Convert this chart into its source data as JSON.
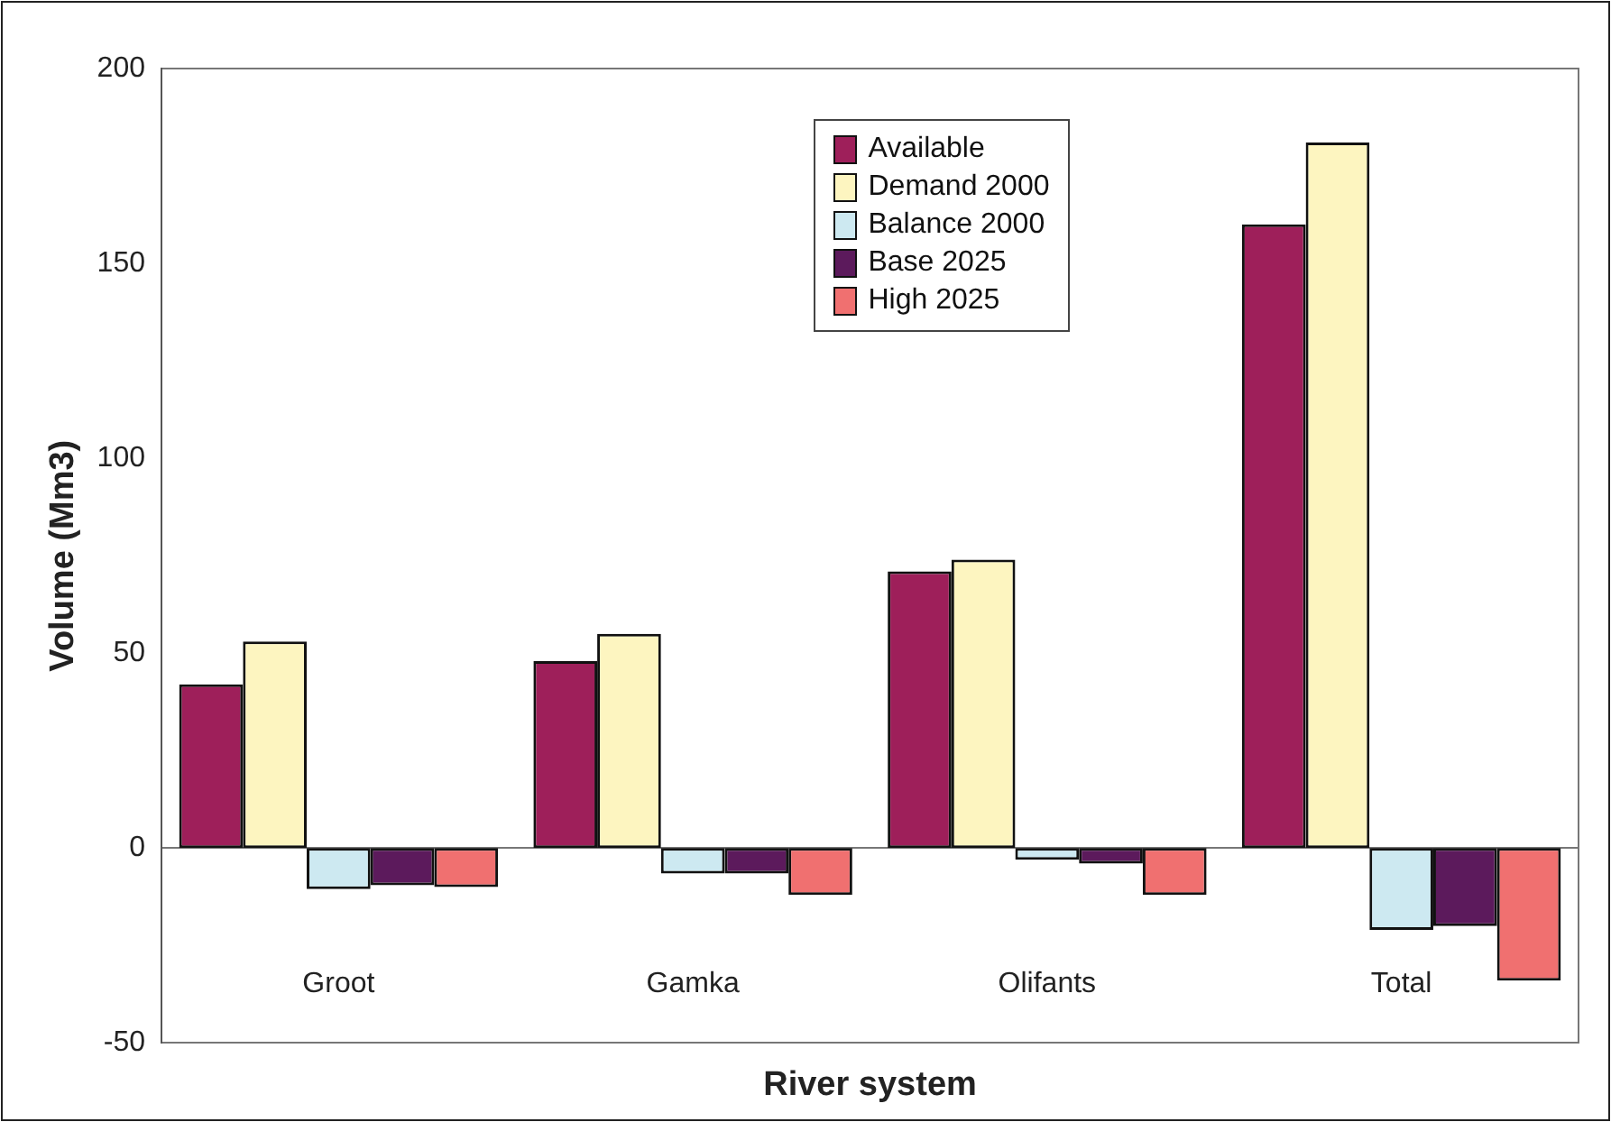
{
  "chart_data": {
    "type": "bar",
    "xlabel": "River system",
    "ylabel": "Volume (Mm3)",
    "categories": [
      "Groot",
      "Gamka",
      "Olifants",
      "Total"
    ],
    "series": [
      {
        "name": "Available",
        "color": "#9e1f5a",
        "values": [
          42,
          48,
          71,
          160
        ]
      },
      {
        "name": "Demand 2000",
        "color": "#fdf5c0",
        "values": [
          53,
          55,
          74,
          181
        ]
      },
      {
        "name": "Balance 2000",
        "color": "#cde9f1",
        "values": [
          -10.5,
          -6.5,
          -3,
          -21
        ]
      },
      {
        "name": "Base 2025",
        "color": "#5c1a5c",
        "values": [
          -9.5,
          -6.5,
          -4,
          -20
        ]
      },
      {
        "name": "High 2025",
        "color": "#f07070",
        "values": [
          -10,
          -12,
          -12,
          -34
        ]
      }
    ],
    "ylim": [
      -50,
      200
    ],
    "yticks": [
      -50,
      0,
      50,
      100,
      150,
      200
    ],
    "legend": "top"
  }
}
